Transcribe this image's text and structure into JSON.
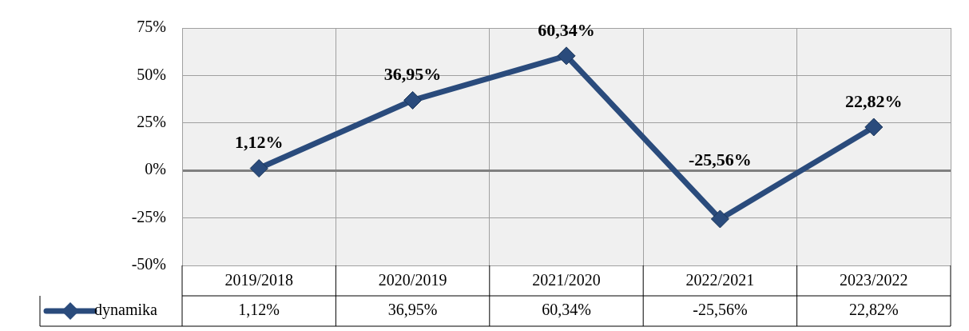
{
  "chart_data": {
    "type": "line",
    "categories": [
      "2019/2018",
      "2020/2019",
      "2021/2020",
      "2022/2021",
      "2023/2022"
    ],
    "series": [
      {
        "name": "dynamika",
        "color": "#2a4b7c",
        "values": [
          1.12,
          36.95,
          60.34,
          -25.56,
          22.82
        ],
        "value_labels": [
          "1,12%",
          "36,95%",
          "60,34%",
          "-25,56%",
          "22,82%"
        ]
      }
    ],
    "ylim": [
      -50,
      75
    ],
    "yticks": [
      {
        "value": -50,
        "label": "-50%"
      },
      {
        "value": -25,
        "label": "-25%"
      },
      {
        "value": 0,
        "label": "0%"
      },
      {
        "value": 25,
        "label": "25%"
      },
      {
        "value": 50,
        "label": "50%"
      },
      {
        "value": 75,
        "label": "75%"
      }
    ],
    "grid": true,
    "legend": "bottom",
    "marker": "diamond",
    "line_style": "solid"
  }
}
